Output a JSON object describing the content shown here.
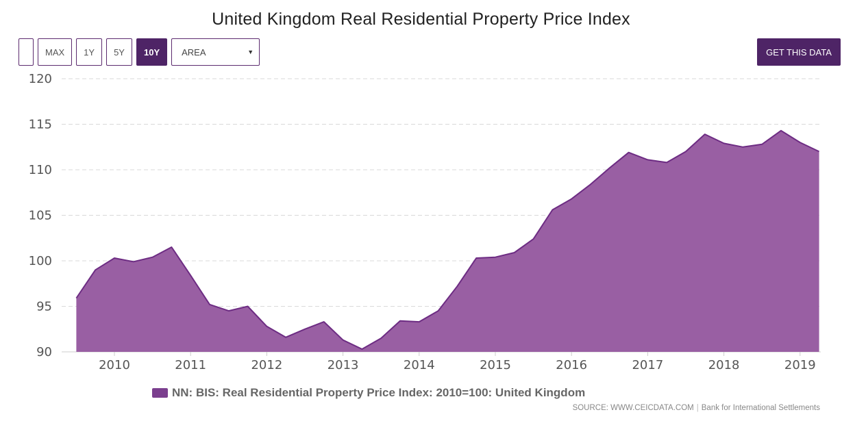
{
  "title": "United Kingdom Real Residential Property Price Index",
  "toolbar": {
    "buttons": [
      {
        "label": ""
      },
      {
        "label": "MAX"
      },
      {
        "label": "1Y"
      },
      {
        "label": "5Y"
      },
      {
        "label": "10Y",
        "active": true
      }
    ],
    "chart_type_select": "AREA",
    "get_data_label": "GET THIS DATA"
  },
  "colors": {
    "accent": "#4e2466",
    "area_fill": "#995fa3",
    "area_line": "#6d2c83",
    "grid": "#d9d9d9"
  },
  "legend": {
    "label": "NN: BIS: Real Residential Property Price Index: 2010=100: United Kingdom"
  },
  "source": {
    "prefix": "SOURCE: WWW.CEICDATA.COM",
    "separator": "|",
    "provider": "Bank for International Settlements"
  },
  "chart_data": {
    "type": "area",
    "title": "United Kingdom Real Residential Property Price Index",
    "ylim": [
      90,
      120
    ],
    "yticks": [
      90,
      95,
      100,
      105,
      110,
      115,
      120
    ],
    "xticks": [
      2010,
      2011,
      2012,
      2013,
      2014,
      2015,
      2016,
      2017,
      2018,
      2019
    ],
    "grid": true,
    "legend_position": "bottom",
    "series": [
      {
        "name": "NN: BIS: Real Residential Property Price Index: 2010=100: United Kingdom",
        "points": [
          {
            "x": "2009-07",
            "y": 95.9
          },
          {
            "x": "2009-10",
            "y": 99.0
          },
          {
            "x": "2010-01",
            "y": 100.3
          },
          {
            "x": "2010-04",
            "y": 99.9
          },
          {
            "x": "2010-07",
            "y": 100.4
          },
          {
            "x": "2010-10",
            "y": 101.5
          },
          {
            "x": "2011-01",
            "y": 98.4
          },
          {
            "x": "2011-04",
            "y": 95.2
          },
          {
            "x": "2011-07",
            "y": 94.5
          },
          {
            "x": "2011-10",
            "y": 95.0
          },
          {
            "x": "2012-01",
            "y": 92.8
          },
          {
            "x": "2012-04",
            "y": 91.6
          },
          {
            "x": "2012-07",
            "y": 92.5
          },
          {
            "x": "2012-10",
            "y": 93.3
          },
          {
            "x": "2013-01",
            "y": 91.3
          },
          {
            "x": "2013-04",
            "y": 90.3
          },
          {
            "x": "2013-07",
            "y": 91.5
          },
          {
            "x": "2013-10",
            "y": 93.4
          },
          {
            "x": "2014-01",
            "y": 93.3
          },
          {
            "x": "2014-04",
            "y": 94.5
          },
          {
            "x": "2014-07",
            "y": 97.2
          },
          {
            "x": "2014-10",
            "y": 100.3
          },
          {
            "x": "2015-01",
            "y": 100.4
          },
          {
            "x": "2015-04",
            "y": 100.9
          },
          {
            "x": "2015-07",
            "y": 102.4
          },
          {
            "x": "2015-10",
            "y": 105.6
          },
          {
            "x": "2016-01",
            "y": 106.8
          },
          {
            "x": "2016-04",
            "y": 108.4
          },
          {
            "x": "2016-07",
            "y": 110.2
          },
          {
            "x": "2016-10",
            "y": 111.9
          },
          {
            "x": "2017-01",
            "y": 111.1
          },
          {
            "x": "2017-04",
            "y": 110.8
          },
          {
            "x": "2017-07",
            "y": 112.0
          },
          {
            "x": "2017-10",
            "y": 113.9
          },
          {
            "x": "2018-01",
            "y": 112.9
          },
          {
            "x": "2018-04",
            "y": 112.5
          },
          {
            "x": "2018-07",
            "y": 112.8
          },
          {
            "x": "2018-10",
            "y": 114.3
          },
          {
            "x": "2019-01",
            "y": 113.0
          },
          {
            "x": "2019-04",
            "y": 112.0
          }
        ]
      }
    ]
  }
}
